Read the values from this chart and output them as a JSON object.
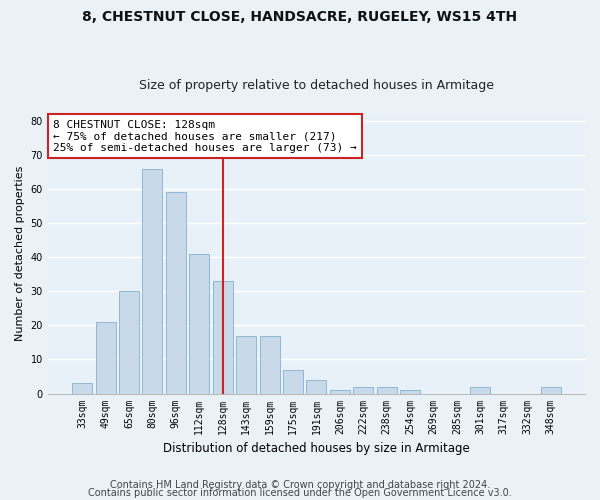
{
  "title": "8, CHESTNUT CLOSE, HANDSACRE, RUGELEY, WS15 4TH",
  "subtitle": "Size of property relative to detached houses in Armitage",
  "xlabel": "Distribution of detached houses by size in Armitage",
  "ylabel": "Number of detached properties",
  "categories": [
    "33sqm",
    "49sqm",
    "65sqm",
    "80sqm",
    "96sqm",
    "112sqm",
    "128sqm",
    "143sqm",
    "159sqm",
    "175sqm",
    "191sqm",
    "206sqm",
    "222sqm",
    "238sqm",
    "254sqm",
    "269sqm",
    "285sqm",
    "301sqm",
    "317sqm",
    "332sqm",
    "348sqm"
  ],
  "values": [
    3,
    21,
    30,
    66,
    59,
    41,
    33,
    17,
    17,
    7,
    4,
    1,
    2,
    2,
    1,
    0,
    0,
    2,
    0,
    0,
    2
  ],
  "bar_color": "#c8d9e9",
  "bar_edge_color": "#8fb8d4",
  "highlight_index": 6,
  "highlight_line_color": "#cc2222",
  "annotation_text": "8 CHESTNUT CLOSE: 128sqm\n← 75% of detached houses are smaller (217)\n25% of semi-detached houses are larger (73) →",
  "annotation_box_color": "#ffffff",
  "annotation_box_edge_color": "#cc2222",
  "ylim": [
    0,
    82
  ],
  "yticks": [
    0,
    10,
    20,
    30,
    40,
    50,
    60,
    70,
    80
  ],
  "fig_background_color": "#eaf2f8",
  "ax_background_color": "#e8f1f8",
  "grid_color": "#ffffff",
  "footer_line1": "Contains HM Land Registry data © Crown copyright and database right 2024.",
  "footer_line2": "Contains public sector information licensed under the Open Government Licence v3.0.",
  "title_fontsize": 10,
  "subtitle_fontsize": 9,
  "xlabel_fontsize": 8.5,
  "ylabel_fontsize": 8,
  "tick_fontsize": 7,
  "annotation_fontsize": 8,
  "footer_fontsize": 7
}
